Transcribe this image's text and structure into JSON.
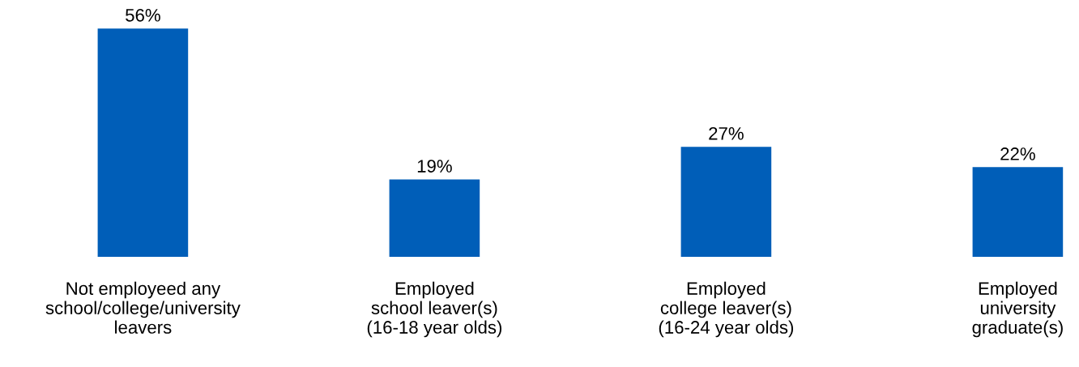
{
  "chart_data": {
    "type": "bar",
    "categories": [
      "Not employeed any\nschool/college/university\nleavers",
      "Employed\nschool leaver(s)\n(16-18 year olds)",
      "Employed\ncollege leaver(s)\n(16-24 year olds)",
      "Employed\nuniversity\ngraduate(s)"
    ],
    "values": [
      56,
      19,
      27,
      22
    ],
    "value_labels": [
      "56%",
      "19%",
      "27%",
      "22%"
    ],
    "color": "#005eb8",
    "grid": false
  }
}
